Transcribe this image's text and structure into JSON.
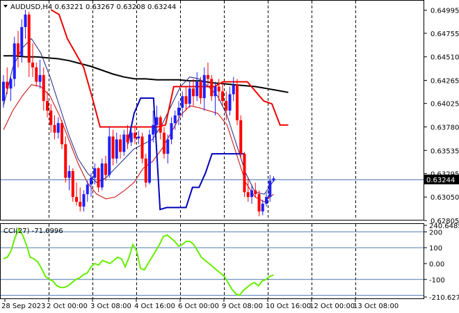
{
  "header": {
    "symbol_line": "AUDUSD,H4  0.63221 0.63267 0.63208 0.63244"
  },
  "colors": {
    "bull": "#1f1fff",
    "bear": "#ff0000",
    "ma_black": "#000000",
    "ma_navy": "#1a237e",
    "ma_red": "#cc0000",
    "bb_blue": "#0000bb",
    "bb_red": "#ee0000",
    "cci": "#66ee00",
    "price_tag_bg": "#000000",
    "price_tag_text": "#ffffff",
    "grid_dashed": "#000000",
    "level_line": "#4a7ab0"
  },
  "chart_data": [
    {
      "type": "candlestick",
      "title": "AUDUSD,H4",
      "ohlc_header": {
        "open": 0.63221,
        "high": 0.63267,
        "low": 0.63208,
        "close": 0.63244
      },
      "ylim": [
        0.6282,
        0.6508
      ],
      "y_ticks": [
        "0.64995",
        "0.64755",
        "0.64510",
        "0.64265",
        "0.64025",
        "0.63780",
        "0.63535",
        "0.63295",
        "0.63050",
        "0.62805"
      ],
      "y_tick_values": [
        0.64995,
        0.64755,
        0.6451,
        0.64265,
        0.64025,
        0.6378,
        0.63535,
        0.63295,
        0.6305,
        0.62805
      ],
      "last_price": "0.63244",
      "x_ticks": [
        "28 Sep 2023",
        "2 Oct 00:00",
        "3 Oct 08:00",
        "4 Oct 16:00",
        "6 Oct 00:00",
        "9 Oct 08:00",
        "10 Oct 16:00",
        "12 Oct 00:00",
        "13 Oct 08:00"
      ],
      "x_tick_index": [
        0,
        12,
        24,
        36,
        48,
        60,
        72,
        84,
        96
      ],
      "session_separators": [
        12,
        24,
        36,
        48,
        60,
        72,
        84,
        96
      ],
      "candles": [
        [
          0.6405,
          0.6432,
          0.6398,
          0.6425
        ],
        [
          0.6425,
          0.644,
          0.6412,
          0.6418
        ],
        [
          0.6418,
          0.643,
          0.6405,
          0.6428
        ],
        [
          0.6428,
          0.6472,
          0.642,
          0.6465
        ],
        [
          0.6465,
          0.6478,
          0.644,
          0.6452
        ],
        [
          0.6452,
          0.649,
          0.6445,
          0.6482
        ],
        [
          0.6482,
          0.65,
          0.647,
          0.6495
        ],
        [
          0.6495,
          0.6498,
          0.643,
          0.6445
        ],
        [
          0.6445,
          0.6465,
          0.643,
          0.644
        ],
        [
          0.644,
          0.6445,
          0.642,
          0.6425
        ],
        [
          0.6425,
          0.6448,
          0.6418,
          0.6432
        ],
        [
          0.6432,
          0.644,
          0.6395,
          0.6405
        ],
        [
          0.6405,
          0.6415,
          0.6388,
          0.6395
        ],
        [
          0.6395,
          0.6402,
          0.6372,
          0.638
        ],
        [
          0.638,
          0.639,
          0.6365,
          0.6372
        ],
        [
          0.6372,
          0.6388,
          0.6366,
          0.6382
        ],
        [
          0.6382,
          0.6385,
          0.6355,
          0.636
        ],
        [
          0.636,
          0.6368,
          0.632,
          0.6325
        ],
        [
          0.6325,
          0.6338,
          0.6312,
          0.6332
        ],
        [
          0.6332,
          0.6335,
          0.63,
          0.6305
        ],
        [
          0.6305,
          0.632,
          0.6296,
          0.63
        ],
        [
          0.63,
          0.6315,
          0.629,
          0.6295
        ],
        [
          0.6295,
          0.6312,
          0.629,
          0.6308
        ],
        [
          0.6308,
          0.6322,
          0.63,
          0.6318
        ],
        [
          0.6318,
          0.633,
          0.6305,
          0.6325
        ],
        [
          0.6325,
          0.634,
          0.6318,
          0.6335
        ],
        [
          0.6335,
          0.6336,
          0.631,
          0.6315
        ],
        [
          0.6315,
          0.6345,
          0.6312,
          0.634
        ],
        [
          0.634,
          0.6348,
          0.6322,
          0.6328
        ],
        [
          0.6328,
          0.6378,
          0.6325,
          0.6368
        ],
        [
          0.6368,
          0.6375,
          0.6338,
          0.6345
        ],
        [
          0.6345,
          0.6372,
          0.634,
          0.6365
        ],
        [
          0.6365,
          0.637,
          0.6345,
          0.6352
        ],
        [
          0.6352,
          0.6375,
          0.6348,
          0.637
        ],
        [
          0.637,
          0.638,
          0.6355,
          0.6362
        ],
        [
          0.6362,
          0.6378,
          0.6358,
          0.6372
        ],
        [
          0.6372,
          0.638,
          0.636,
          0.6366
        ],
        [
          0.6366,
          0.6374,
          0.636,
          0.6368
        ],
        [
          0.6368,
          0.6372,
          0.634,
          0.6345
        ],
        [
          0.6345,
          0.635,
          0.6315,
          0.632
        ],
        [
          0.632,
          0.6375,
          0.6318,
          0.637
        ],
        [
          0.637,
          0.6395,
          0.6362,
          0.638
        ],
        [
          0.638,
          0.64,
          0.6372,
          0.6388
        ],
        [
          0.6388,
          0.639,
          0.6365,
          0.6372
        ],
        [
          0.6372,
          0.6378,
          0.6345,
          0.635
        ],
        [
          0.635,
          0.637,
          0.634,
          0.6365
        ],
        [
          0.6365,
          0.6388,
          0.636,
          0.6382
        ],
        [
          0.6382,
          0.6395,
          0.6375,
          0.639
        ],
        [
          0.639,
          0.6405,
          0.638,
          0.6398
        ],
        [
          0.6398,
          0.6415,
          0.6388,
          0.641
        ],
        [
          0.641,
          0.642,
          0.6395,
          0.6402
        ],
        [
          0.6402,
          0.6425,
          0.6398,
          0.6418
        ],
        [
          0.6418,
          0.6428,
          0.64,
          0.641
        ],
        [
          0.641,
          0.6435,
          0.6405,
          0.6425
        ],
        [
          0.6425,
          0.643,
          0.6402,
          0.6408
        ],
        [
          0.6408,
          0.644,
          0.6395,
          0.6432
        ],
        [
          0.6432,
          0.6445,
          0.642,
          0.6428
        ],
        [
          0.6428,
          0.6432,
          0.6405,
          0.641
        ],
        [
          0.641,
          0.6425,
          0.639,
          0.642
        ],
        [
          0.642,
          0.6428,
          0.6405,
          0.6415
        ],
        [
          0.6415,
          0.6425,
          0.64,
          0.6405
        ],
        [
          0.6405,
          0.6415,
          0.6385,
          0.6395
        ],
        [
          0.6395,
          0.642,
          0.639,
          0.6412
        ],
        [
          0.6412,
          0.643,
          0.6405,
          0.6422
        ],
        [
          0.6422,
          0.6428,
          0.638,
          0.6385
        ],
        [
          0.6385,
          0.639,
          0.6345,
          0.635
        ],
        [
          0.635,
          0.6352,
          0.6305,
          0.631
        ],
        [
          0.631,
          0.6325,
          0.63,
          0.6305
        ],
        [
          0.6305,
          0.6318,
          0.6298,
          0.6312
        ],
        [
          0.6312,
          0.632,
          0.6305,
          0.6308
        ],
        [
          0.6308,
          0.6312,
          0.6285,
          0.629
        ],
        [
          0.629,
          0.6302,
          0.6286,
          0.6298
        ],
        [
          0.6298,
          0.631,
          0.6295,
          0.6305
        ],
        [
          0.6305,
          0.6328,
          0.63,
          0.6322
        ],
        [
          0.63221,
          0.63267,
          0.63208,
          0.63244
        ]
      ],
      "candle_x_index": [
        0,
        1,
        2,
        3,
        4,
        5,
        6,
        7,
        8,
        9,
        10,
        11,
        12,
        13,
        14,
        15,
        16,
        17,
        18,
        19,
        20,
        21,
        22,
        23,
        24,
        25,
        26,
        27,
        28,
        29,
        30,
        31,
        32,
        33,
        34,
        35,
        36,
        37,
        38,
        39,
        40,
        41,
        42,
        43,
        44,
        45,
        46,
        47,
        48,
        49,
        50,
        51,
        52,
        53,
        54,
        55,
        56,
        57,
        58,
        59,
        60,
        61,
        62,
        63,
        64,
        65,
        66,
        67,
        68,
        69,
        70,
        71,
        72,
        73,
        74
      ],
      "series": [
        {
          "name": "",
          "values": [
            0.6452,
            0.6452,
            0.6451,
            0.6451,
            0.645,
            0.6449,
            0.6447,
            0.6444,
            0.6441,
            0.6437,
            0.6433,
            0.643,
            0.6428,
            0.6428,
            0.6427,
            0.6427,
            0.6427,
            0.6426,
            0.6426,
            0.6424,
            0.6423,
            0.6422,
            0.6421,
            0.642,
            0.6418,
            0.6416,
            0.6414
          ]
        },
        {
          "name": "",
          "values": [
            0.64,
            0.644,
            0.646,
            0.647,
            0.6455,
            0.643,
            0.64,
            0.637,
            0.6345,
            0.633,
            0.632,
            0.6325,
            0.6335,
            0.6345,
            0.6355,
            0.636,
            0.6365,
            0.638,
            0.64,
            0.642,
            0.643,
            0.6428,
            0.642,
            0.641,
            0.639,
            0.636,
            0.633,
            0.631,
            0.6308,
            0.6322
          ]
        },
        {
          "name": "",
          "values": [
            0.6375,
            0.6395,
            0.641,
            0.6422,
            0.642,
            0.641,
            0.639,
            0.6365,
            0.634,
            0.632,
            0.6308,
            0.6303,
            0.6305,
            0.6312,
            0.632,
            0.6335,
            0.6342,
            0.6355,
            0.6372,
            0.639,
            0.64,
            0.6398,
            0.6395,
            0.6392,
            0.638,
            0.635,
            0.632,
            0.6305,
            0.63,
            0.6308
          ]
        },
        {
          "name": "",
          "values": [
            0.65,
            0.6495,
            0.647,
            0.6455,
            0.644,
            0.641,
            0.6378,
            0.6378,
            0.6378,
            0.6378,
            0.6378,
            0.6378,
            0.6378,
            0.6378,
            0.638,
            0.642,
            0.642,
            0.642,
            0.642,
            0.642,
            0.642,
            0.6425,
            0.6425,
            0.6425,
            0.6425,
            0.6415,
            0.6405,
            0.6402,
            0.638,
            0.638
          ]
        },
        {
          "name": "",
          "values": [
            0.636,
            0.6392,
            0.6408,
            0.6408,
            0.6408,
            0.6292,
            0.6294,
            0.6294,
            0.6294,
            0.6294,
            0.6315,
            0.6315,
            0.633,
            0.635,
            0.635,
            0.635,
            0.635,
            0.635,
            0.635
          ]
        }
      ]
    },
    {
      "type": "line",
      "title": "CCI(27) -71.6996",
      "ylim": [
        -210.6272,
        240.6485
      ],
      "y_ticks": [
        "240.6485",
        "200",
        "100",
        "0.00",
        "-100",
        "-210.6272"
      ],
      "y_tick_values": [
        240.6485,
        200,
        100,
        0,
        -100,
        -210.6272
      ],
      "levels": [
        200,
        100,
        -100,
        -200
      ],
      "series": [
        {
          "name": "",
          "values": [
            30,
            40,
            80,
            160,
            220,
            180,
            120,
            40,
            30,
            10,
            -30,
            -80,
            -100,
            -110,
            -140,
            -150,
            -150,
            -140,
            -120,
            -100,
            -90,
            -70,
            -60,
            -20,
            0,
            -10,
            20,
            10,
            0,
            20,
            40,
            30,
            -20,
            40,
            120,
            80,
            -30,
            -40,
            0,
            40,
            80,
            120,
            170,
            180,
            160,
            140,
            110,
            120,
            140,
            140,
            120,
            80,
            40,
            20,
            0,
            -20,
            -40,
            -60,
            -80,
            -120,
            -160,
            -190,
            -200,
            -170,
            -150,
            -130,
            -120,
            -140,
            -110,
            -100,
            -80,
            -72
          ]
        }
      ]
    }
  ]
}
